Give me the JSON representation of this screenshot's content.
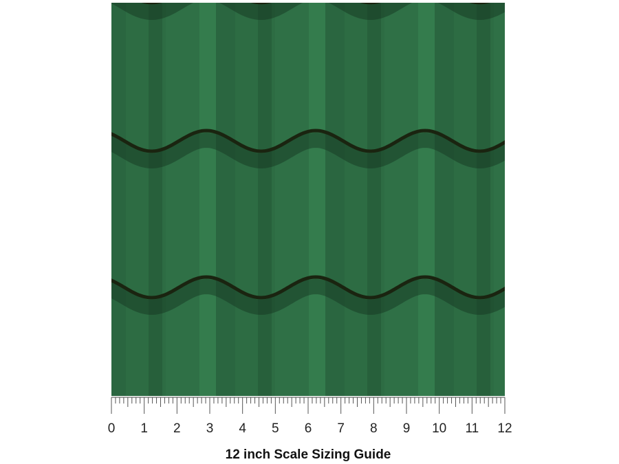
{
  "ruler": {
    "labels": [
      0,
      1,
      2,
      3,
      4,
      5,
      6,
      7,
      8,
      9,
      10,
      11,
      12
    ]
  },
  "caption": "12 inch Scale Sizing Guide"
}
